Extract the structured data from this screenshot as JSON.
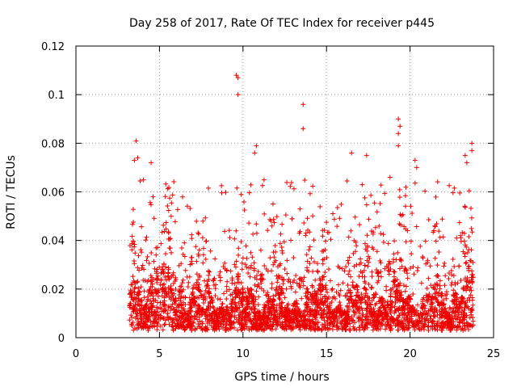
{
  "chart_data": {
    "type": "scatter",
    "title": "Day 258 of 2017, Rate Of TEC Index for receiver p445",
    "xlabel": "GPS time / hours",
    "ylabel": "ROTI / TECUs",
    "xlim": [
      0,
      25
    ],
    "ylim": [
      0,
      0.12
    ],
    "xticks": [
      0,
      5,
      10,
      15,
      20,
      25
    ],
    "xtick_labels": [
      "0",
      "5",
      "10",
      "15",
      "20",
      "25"
    ],
    "yticks": [
      0,
      0.02,
      0.04,
      0.06,
      0.08,
      0.1,
      0.12
    ],
    "ytick_labels": [
      "0",
      "0.02",
      "0.04",
      "0.06",
      "0.08",
      "0.1",
      "0.12"
    ],
    "grid": true,
    "marker": "+",
    "color": "#ee0000",
    "series": [
      {
        "name": "ROTI",
        "data_range_hours": [
          3.2,
          23.8
        ],
        "notable_points": [
          {
            "x": 3.6,
            "y": 0.081
          },
          {
            "x": 3.5,
            "y": 0.073
          },
          {
            "x": 3.7,
            "y": 0.074
          },
          {
            "x": 4.5,
            "y": 0.072
          },
          {
            "x": 9.6,
            "y": 0.108
          },
          {
            "x": 9.7,
            "y": 0.107
          },
          {
            "x": 9.7,
            "y": 0.1
          },
          {
            "x": 10.8,
            "y": 0.079
          },
          {
            "x": 10.7,
            "y": 0.076
          },
          {
            "x": 13.6,
            "y": 0.096
          },
          {
            "x": 13.6,
            "y": 0.086
          },
          {
            "x": 16.5,
            "y": 0.076
          },
          {
            "x": 17.4,
            "y": 0.075
          },
          {
            "x": 19.3,
            "y": 0.09
          },
          {
            "x": 19.4,
            "y": 0.087
          },
          {
            "x": 19.3,
            "y": 0.084
          },
          {
            "x": 19.3,
            "y": 0.079
          },
          {
            "x": 18.8,
            "y": 0.066
          },
          {
            "x": 20.3,
            "y": 0.073
          },
          {
            "x": 20.4,
            "y": 0.07
          },
          {
            "x": 23.7,
            "y": 0.08
          },
          {
            "x": 23.7,
            "y": 0.077
          },
          {
            "x": 23.3,
            "y": 0.075
          },
          {
            "x": 23.4,
            "y": 0.072
          }
        ]
      }
    ]
  }
}
